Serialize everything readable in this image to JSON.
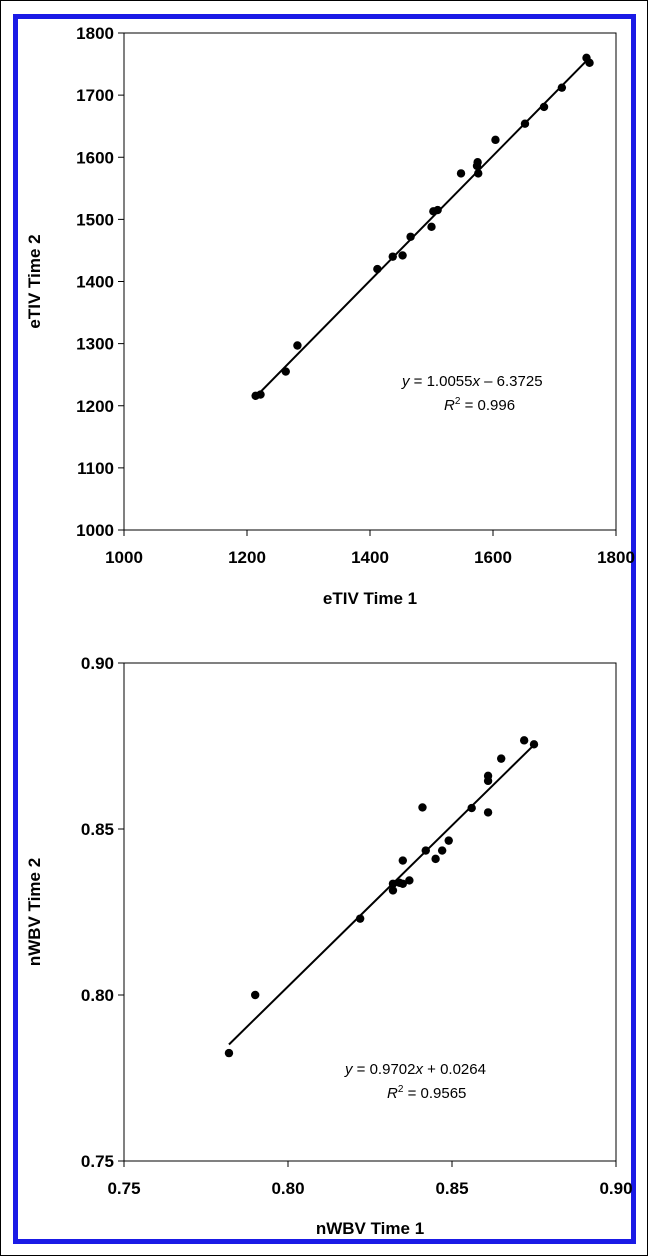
{
  "colors": {
    "frame": "#1a1ae6",
    "points": "#000000",
    "axes": "#000000"
  },
  "chart_data": [
    {
      "type": "scatter",
      "title": "",
      "xlabel": "eTIV  Time 1",
      "ylabel": "eTIV Time 2",
      "xlim": [
        1000,
        1800
      ],
      "ylim": [
        1000,
        1800
      ],
      "x_ticks": [
        "1000",
        "1200",
        "1400",
        "1600",
        "1800"
      ],
      "y_ticks": [
        "1000",
        "1100",
        "1200",
        "1300",
        "1400",
        "1500",
        "1600",
        "1700",
        "1800"
      ],
      "grid": false,
      "legend": "none",
      "points": [
        [
          1214,
          1216
        ],
        [
          1222,
          1218
        ],
        [
          1263,
          1255
        ],
        [
          1282,
          1297
        ],
        [
          1412,
          1420
        ],
        [
          1437,
          1440
        ],
        [
          1453,
          1442
        ],
        [
          1466,
          1472
        ],
        [
          1500,
          1488
        ],
        [
          1503,
          1513
        ],
        [
          1510,
          1515
        ],
        [
          1548,
          1574
        ],
        [
          1574,
          1586
        ],
        [
          1575,
          1592
        ],
        [
          1576,
          1574
        ],
        [
          1604,
          1628
        ],
        [
          1652,
          1654
        ],
        [
          1683,
          1681
        ],
        [
          1712,
          1712
        ],
        [
          1752,
          1760
        ],
        [
          1757,
          1752
        ]
      ],
      "trendline": {
        "slope": 1.0055,
        "intercept": -6.3725,
        "x_range": [
          1214,
          1757
        ]
      },
      "annotation": {
        "equation_prefix": "y",
        "equation_rest": " = 1.0055",
        "equation_var": "x",
        "equation_tail": " – 6.3725",
        "r2_label": "R",
        "r2_exp": "2",
        "r2_value": " = 0.996"
      }
    },
    {
      "type": "scatter",
      "title": "",
      "xlabel": "nWBV Time 1",
      "ylabel": "nWBV Time 2",
      "xlim": [
        0.75,
        0.9
      ],
      "ylim": [
        0.75,
        0.9
      ],
      "x_ticks": [
        "0.75",
        "0.80",
        "0.85",
        "0.90"
      ],
      "y_ticks": [
        "0.75",
        "0.80",
        "0.85",
        "0.90"
      ],
      "grid": false,
      "legend": "none",
      "points": [
        [
          0.782,
          0.7825
        ],
        [
          0.79,
          0.8
        ],
        [
          0.822,
          0.823
        ],
        [
          0.832,
          0.8315
        ],
        [
          0.832,
          0.8335
        ],
        [
          0.834,
          0.8338
        ],
        [
          0.835,
          0.8405
        ],
        [
          0.835,
          0.8335
        ],
        [
          0.837,
          0.8345
        ],
        [
          0.841,
          0.8565
        ],
        [
          0.842,
          0.8435
        ],
        [
          0.845,
          0.841
        ],
        [
          0.847,
          0.8435
        ],
        [
          0.849,
          0.8465
        ],
        [
          0.856,
          0.8563
        ],
        [
          0.861,
          0.855
        ],
        [
          0.861,
          0.866
        ],
        [
          0.861,
          0.8645
        ],
        [
          0.865,
          0.8712
        ],
        [
          0.872,
          0.8767
        ],
        [
          0.875,
          0.8755
        ]
      ],
      "trendline": {
        "slope": 0.9702,
        "intercept": 0.0264,
        "x_range": [
          0.782,
          0.875
        ]
      },
      "annotation": {
        "equation_prefix": "y",
        "equation_rest": " = 0.9702",
        "equation_var": "x",
        "equation_tail": " + 0.0264",
        "r2_label": "R",
        "r2_exp": "2",
        "r2_value": " = 0.9565"
      }
    }
  ]
}
